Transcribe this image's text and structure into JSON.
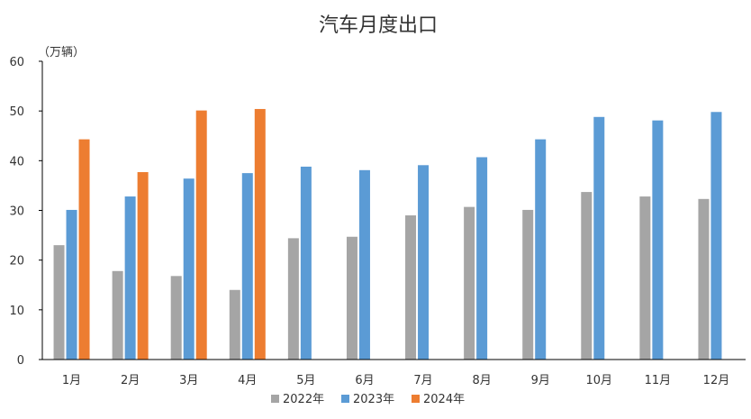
{
  "chart_data": {
    "type": "bar",
    "title": "汽车月度出口",
    "ylabel": "（万辆）",
    "xlabel": "",
    "ylim": [
      0,
      60
    ],
    "yticks": [
      0,
      10,
      20,
      30,
      40,
      50,
      60
    ],
    "grid": false,
    "legend_position": "bottom",
    "categories": [
      "1月",
      "2月",
      "3月",
      "4月",
      "5月",
      "6月",
      "7月",
      "8月",
      "9月",
      "10月",
      "11月",
      "12月"
    ],
    "series": [
      {
        "name": "2022年",
        "color": "#a5a5a5",
        "values": [
          23,
          17.8,
          16.8,
          14,
          24.4,
          24.7,
          29,
          30.7,
          30.1,
          33.7,
          32.8,
          32.3
        ]
      },
      {
        "name": "2023年",
        "color": "#5b9bd5",
        "values": [
          30.1,
          32.8,
          36.4,
          37.5,
          38.8,
          38.1,
          39.1,
          40.7,
          44.3,
          48.8,
          48.1,
          49.8
        ]
      },
      {
        "name": "2024年",
        "color": "#ed7d31",
        "values": [
          44.3,
          37.7,
          50.1,
          50.4,
          null,
          null,
          null,
          null,
          null,
          null,
          null,
          null
        ]
      }
    ]
  }
}
